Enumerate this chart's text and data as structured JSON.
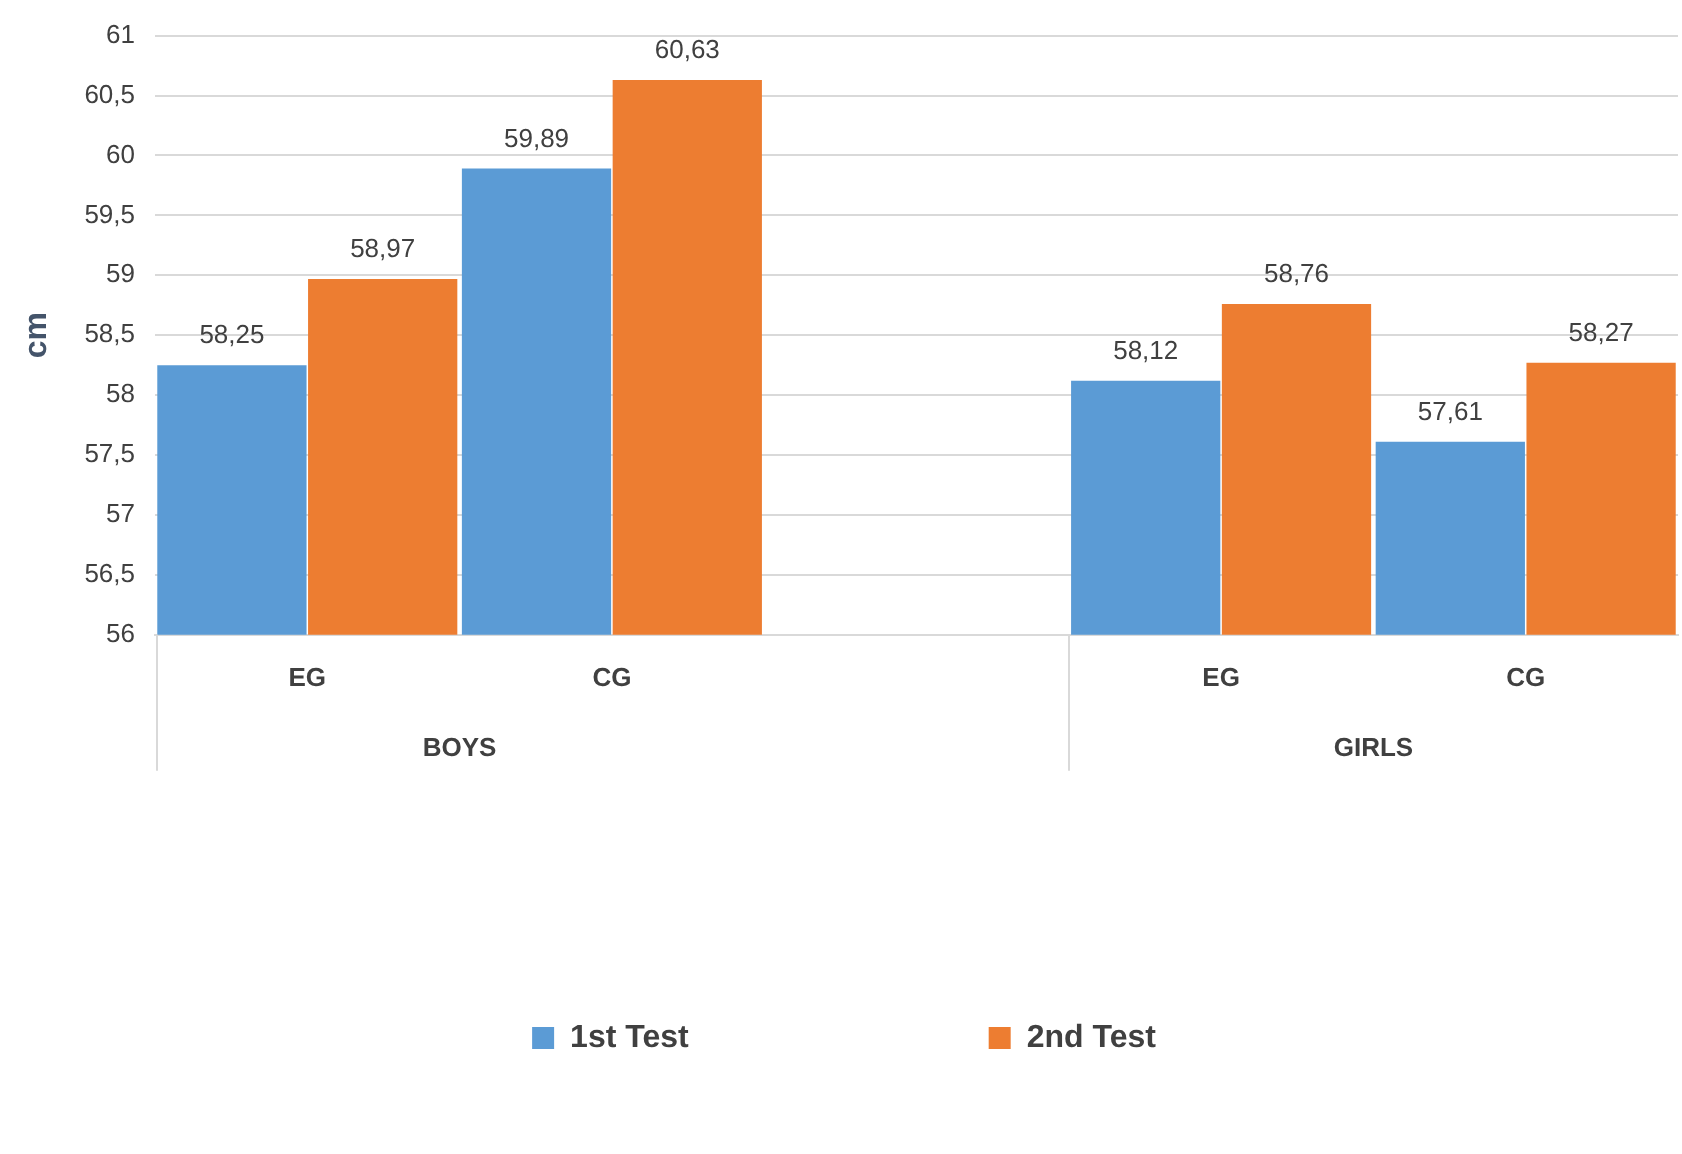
{
  "chart_data": {
    "type": "bar",
    "ylabel": "cm",
    "categories": [
      "EG",
      "CG",
      null,
      "EG",
      "CG"
    ],
    "series": [
      {
        "name": "1st Test",
        "color": "#5b9bd5",
        "values": [
          58.25,
          59.89,
          null,
          58.12,
          57.61
        ],
        "value_labels": [
          "58,25",
          "59,89",
          null,
          "58,12",
          "57,61"
        ]
      },
      {
        "name": "2nd Test",
        "color": "#ed7d31",
        "values": [
          58.97,
          60.63,
          null,
          58.76,
          58.27
        ],
        "value_labels": [
          "58,97",
          "60,63",
          null,
          "58,76",
          "58,27"
        ]
      }
    ],
    "ylim": [
      56,
      61
    ],
    "yticks": [
      56,
      {
        "value": 56.5,
        "label": "56,5"
      },
      57,
      {
        "value": 57.5,
        "label": "57,5"
      },
      58,
      {
        "value": 58.5,
        "label": "58,5"
      },
      59,
      {
        "value": 59.5,
        "label": "59,5"
      },
      60,
      {
        "value": 60.5,
        "label": "60,5"
      },
      61
    ],
    "annotations": [
      "BOYS",
      "GIRLS"
    ],
    "grid": "y",
    "legend": "bottom"
  }
}
